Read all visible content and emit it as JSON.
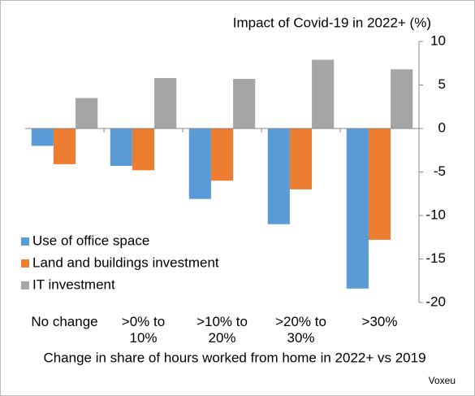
{
  "chart_data": {
    "type": "bar",
    "title": "Impact of Covid-19 in 2022+ (%)",
    "x_label": "Change in share of hours worked from home in 2022+ vs 2019",
    "source": "Voxeu",
    "categories": [
      "No change",
      ">0% to\n10%",
      ">10% to\n20%",
      ">20% to\n30%",
      ">30%"
    ],
    "series": [
      {
        "name": "Use of office space",
        "color": "#5b9bd5",
        "values": [
          -2.0,
          -4.3,
          -8.1,
          -11.0,
          -18.4
        ]
      },
      {
        "name": "Land and buildings investment",
        "color": "#ed7d31",
        "values": [
          -4.1,
          -4.8,
          -6.0,
          -7.0,
          -12.8
        ]
      },
      {
        "name": "IT investment",
        "color": "#a5a5a5",
        "values": [
          3.5,
          5.8,
          5.7,
          7.9,
          6.8
        ]
      }
    ],
    "ylim": [
      -20,
      10
    ],
    "yticks": [
      -20,
      -15,
      -10,
      -5,
      0,
      5,
      10
    ],
    "y_axis_side": "right",
    "grid": false,
    "legend": "left"
  }
}
